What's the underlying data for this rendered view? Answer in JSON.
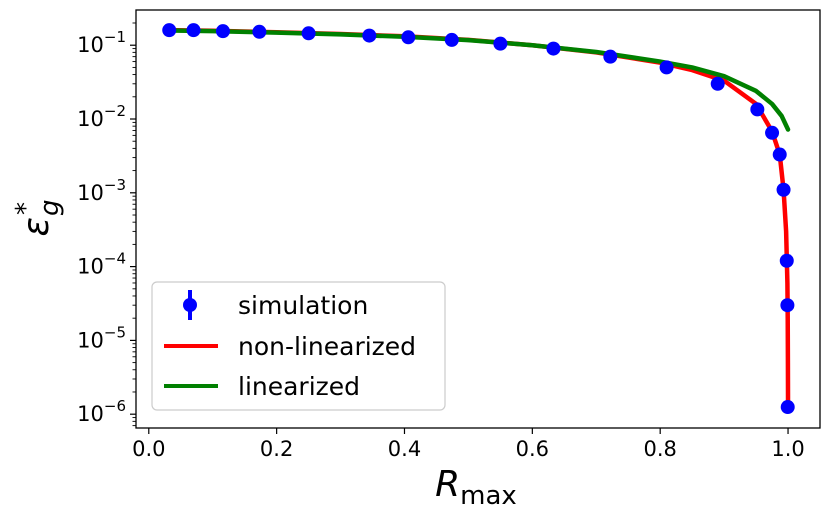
{
  "chart_data": {
    "type": "line",
    "title": "",
    "xlabel": "R",
    "xlabel_sub": "max",
    "ylabel": "ε",
    "ylabel_sub": "g",
    "ylabel_sup": "*",
    "xlim": [
      -0.02,
      1.05
    ],
    "ylim": [
      6.5e-07,
      0.3
    ],
    "yscale": "log",
    "grid": false,
    "legend_position": "lower-left",
    "x_ticks": [
      {
        "value": 0.0,
        "label": "0.0"
      },
      {
        "value": 0.2,
        "label": "0.2"
      },
      {
        "value": 0.4,
        "label": "0.4"
      },
      {
        "value": 0.6,
        "label": "0.6"
      },
      {
        "value": 0.8,
        "label": "0.8"
      },
      {
        "value": 1.0,
        "label": "1.0"
      }
    ],
    "y_ticks": [
      {
        "value": 1e-06,
        "base": "10",
        "exp": "−6"
      },
      {
        "value": 1e-05,
        "base": "10",
        "exp": "−5"
      },
      {
        "value": 0.0001,
        "base": "10",
        "exp": "−4"
      },
      {
        "value": 0.001,
        "base": "10",
        "exp": "−3"
      },
      {
        "value": 0.01,
        "base": "10",
        "exp": "−2"
      },
      {
        "value": 0.1,
        "base": "10",
        "exp": "−1"
      }
    ],
    "series": [
      {
        "name": "simulation",
        "kind": "points",
        "color": "#0000ff",
        "x": [
          0.032,
          0.07,
          0.116,
          0.173,
          0.25,
          0.345,
          0.406,
          0.474,
          0.55,
          0.633,
          0.722,
          0.81,
          0.89,
          0.952,
          0.975,
          0.987,
          0.993,
          0.998,
          0.999,
          0.9995
        ],
        "y": [
          0.16,
          0.16,
          0.155,
          0.152,
          0.145,
          0.135,
          0.128,
          0.118,
          0.105,
          0.09,
          0.07,
          0.05,
          0.03,
          0.0135,
          0.0065,
          0.0033,
          0.0011,
          0.00012,
          3e-05,
          1.25e-06
        ]
      },
      {
        "name": "non-linearized",
        "kind": "line",
        "color": "#ff0000",
        "x": [
          0.032,
          0.1,
          0.2,
          0.3,
          0.4,
          0.5,
          0.6,
          0.7,
          0.8,
          0.85,
          0.9,
          0.95,
          0.975,
          0.987,
          0.993,
          0.997,
          0.999,
          0.9995,
          0.9998,
          1.0
        ],
        "y": [
          0.16,
          0.157,
          0.15,
          0.142,
          0.132,
          0.118,
          0.1,
          0.08,
          0.058,
          0.046,
          0.033,
          0.016,
          0.0068,
          0.0033,
          0.0011,
          0.0003,
          6e-05,
          2e-05,
          5e-06,
          1.25e-06
        ]
      },
      {
        "name": "linearized",
        "kind": "line",
        "color": "#008000",
        "x": [
          0.032,
          0.1,
          0.2,
          0.3,
          0.4,
          0.5,
          0.6,
          0.7,
          0.8,
          0.85,
          0.9,
          0.95,
          0.975,
          0.99,
          1.0
        ],
        "y": [
          0.158,
          0.155,
          0.148,
          0.14,
          0.13,
          0.117,
          0.1,
          0.081,
          0.06,
          0.05,
          0.038,
          0.024,
          0.016,
          0.011,
          0.0072
        ]
      }
    ]
  }
}
